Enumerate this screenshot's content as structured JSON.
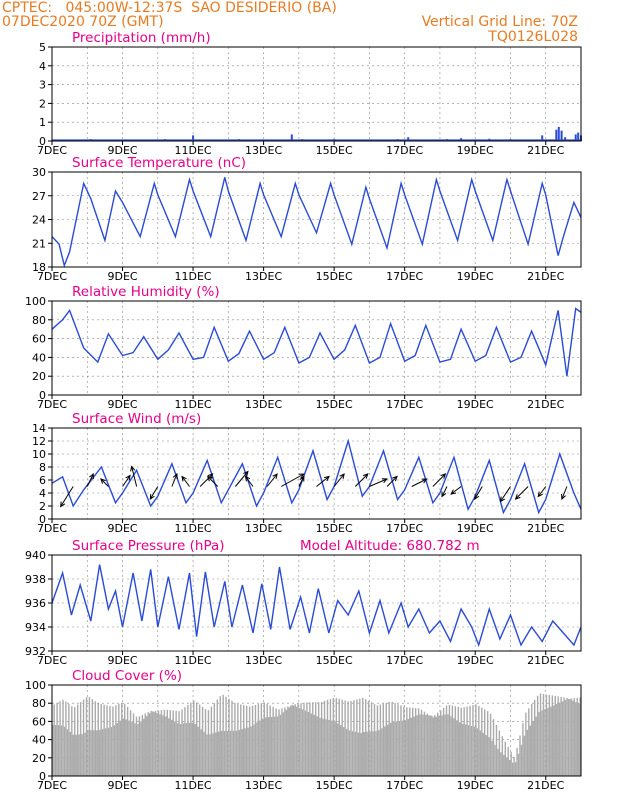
{
  "header": {
    "line1": "CPTEC:   045:00W-12:37S  SAO DESIDERIO (BA)",
    "line2": "07DEC2020 70Z (GMT)",
    "grid_note": "Vertical Grid Line: 70Z",
    "code": "TQ0126L028"
  },
  "colors": {
    "header": "#e87b22",
    "title": "#e8008a",
    "line": "#2a4bd7",
    "cloud": "#aaaaaa",
    "frame": "#000000",
    "grid": "#888888"
  },
  "date_ticks": [
    "7DEC",
    "9DEC",
    "11DEC",
    "13DEC",
    "15DEC",
    "17DEC",
    "19DEC",
    "21DEC"
  ],
  "chart_data": [
    {
      "id": "precip",
      "type": "bar",
      "title": "Precipitation (mm/h)",
      "ylim": [
        0,
        5
      ],
      "yticks": [
        "0",
        "1",
        "2",
        "3",
        "4",
        "5"
      ],
      "x_range_days": [
        7,
        22
      ],
      "values": [
        [
          8.1,
          0.1
        ],
        [
          8.6,
          0.05
        ],
        [
          10.2,
          0.1
        ],
        [
          11.0,
          0.3
        ],
        [
          12.3,
          0.1
        ],
        [
          13.8,
          0.35
        ],
        [
          14.1,
          0.1
        ],
        [
          15.0,
          0.1
        ],
        [
          15.9,
          0.08
        ],
        [
          16.8,
          0.1
        ],
        [
          17.1,
          0.2
        ],
        [
          18.2,
          0.1
        ],
        [
          18.6,
          0.15
        ],
        [
          19.4,
          0.12
        ],
        [
          20.0,
          0.1
        ],
        [
          20.9,
          0.3
        ],
        [
          21.3,
          0.6
        ],
        [
          21.37,
          0.75
        ],
        [
          21.45,
          0.55
        ],
        [
          21.55,
          0.2
        ],
        [
          21.85,
          0.35
        ],
        [
          21.92,
          0.45
        ],
        [
          22.0,
          0.3
        ]
      ],
      "grid": true
    },
    {
      "id": "temp",
      "type": "line",
      "title": "Surface Temperature (nC)",
      "ylim": [
        18,
        30.5
      ],
      "yticks": [
        "18",
        "21",
        "24",
        "27",
        "30"
      ],
      "amplitude_note": "",
      "series": [
        {
          "x": [
            7.0,
            7.2,
            7.35,
            7.5,
            7.9,
            8.1,
            8.5,
            8.8,
            9.0,
            9.5,
            9.9,
            10.0,
            10.5,
            10.9,
            11.0,
            11.5,
            11.9,
            12.0,
            12.5,
            12.9,
            13.0,
            13.5,
            13.9,
            14.0,
            14.5,
            14.9,
            15.0,
            15.5,
            15.9,
            16.0,
            16.5,
            16.9,
            17.0,
            17.5,
            17.9,
            18.0,
            18.5,
            18.9,
            19.0,
            19.5,
            19.9,
            20.0,
            20.5,
            20.9,
            21.0,
            21.35,
            21.5,
            21.8,
            22.0
          ],
          "y": [
            22.0,
            21.0,
            18.2,
            20.0,
            29.0,
            27.0,
            21.5,
            28.0,
            26.5,
            22.0,
            29.0,
            27.5,
            22.0,
            29.5,
            28.0,
            22.0,
            29.8,
            28.0,
            21.5,
            29.0,
            27.5,
            22.0,
            29.0,
            27.5,
            22.5,
            29.0,
            27.5,
            21.0,
            28.5,
            27.0,
            20.5,
            29.0,
            27.5,
            21.0,
            29.5,
            28.0,
            21.5,
            29.5,
            28.0,
            21.5,
            29.5,
            28.0,
            21.0,
            29.0,
            27.5,
            19.5,
            22.0,
            26.5,
            24.5
          ]
        }
      ],
      "grid": true
    },
    {
      "id": "rh",
      "type": "line",
      "title": "Relative Humidity (%)",
      "ylim": [
        0,
        100
      ],
      "yticks": [
        "0",
        "20",
        "40",
        "60",
        "80",
        "100"
      ],
      "series": [
        {
          "x": [
            7.0,
            7.3,
            7.5,
            7.9,
            8.3,
            8.6,
            9.0,
            9.3,
            9.6,
            10.0,
            10.3,
            10.6,
            11.0,
            11.3,
            11.6,
            12.0,
            12.3,
            12.6,
            13.0,
            13.3,
            13.6,
            14.0,
            14.3,
            14.6,
            15.0,
            15.3,
            15.6,
            16.0,
            16.3,
            16.6,
            17.0,
            17.3,
            17.6,
            18.0,
            18.3,
            18.6,
            19.0,
            19.3,
            19.6,
            20.0,
            20.3,
            20.6,
            21.0,
            21.35,
            21.6,
            21.85,
            22.0
          ],
          "y": [
            70,
            80,
            90,
            50,
            35,
            65,
            42,
            45,
            62,
            38,
            48,
            66,
            38,
            40,
            72,
            36,
            44,
            68,
            38,
            45,
            72,
            34,
            40,
            66,
            38,
            48,
            74,
            34,
            40,
            76,
            36,
            42,
            74,
            35,
            38,
            70,
            36,
            42,
            72,
            35,
            40,
            68,
            32,
            90,
            20,
            92,
            88
          ]
        }
      ],
      "grid": true
    },
    {
      "id": "wind",
      "type": "line",
      "title": "Surface Wind (m/s)",
      "ylim": [
        0,
        14
      ],
      "yticks": [
        "0",
        "2",
        "4",
        "6",
        "8",
        "10",
        "12",
        "14"
      ],
      "series": [
        {
          "x": [
            7.0,
            7.3,
            7.6,
            7.9,
            8.4,
            8.8,
            9.0,
            9.4,
            9.8,
            10.0,
            10.4,
            10.8,
            11.0,
            11.4,
            11.8,
            12.0,
            12.4,
            12.8,
            13.0,
            13.4,
            13.8,
            14.0,
            14.4,
            14.8,
            15.0,
            15.4,
            15.8,
            16.0,
            16.4,
            16.8,
            17.0,
            17.4,
            17.8,
            18.0,
            18.4,
            18.8,
            19.0,
            19.4,
            19.8,
            20.0,
            20.4,
            20.8,
            21.0,
            21.4,
            21.8,
            22.0
          ],
          "y": [
            5.5,
            6.5,
            2.0,
            4.5,
            8.0,
            2.5,
            4.0,
            7.5,
            2.0,
            3.5,
            8.5,
            2.5,
            4.0,
            9.0,
            2.5,
            4.5,
            8.5,
            2.0,
            4.0,
            9.5,
            2.5,
            4.5,
            10.5,
            3.0,
            5.0,
            12.0,
            3.5,
            5.0,
            10.5,
            3.0,
            4.5,
            9.5,
            2.5,
            4.0,
            9.5,
            1.5,
            3.5,
            9.0,
            1.0,
            3.0,
            8.5,
            1.0,
            3.0,
            10.0,
            4.0,
            1.5
          ]
        }
      ],
      "grid": true,
      "wind_arrows": [
        {
          "day": 7.6,
          "u": -2.5,
          "v": -4.0
        },
        {
          "day": 8.0,
          "u": 1.2,
          "v": 2.5
        },
        {
          "day": 8.6,
          "u": -1.5,
          "v": 1.5
        },
        {
          "day": 9.0,
          "u": 1.5,
          "v": 2.2
        },
        {
          "day": 9.4,
          "u": -1.0,
          "v": 4.0
        },
        {
          "day": 10.0,
          "u": -1.5,
          "v": -2.5
        },
        {
          "day": 10.4,
          "u": 1.0,
          "v": 2.5
        },
        {
          "day": 10.9,
          "u": -1.5,
          "v": 2.0
        },
        {
          "day": 11.2,
          "u": 2.5,
          "v": 2.5
        },
        {
          "day": 11.7,
          "u": -2.0,
          "v": 2.0
        },
        {
          "day": 12.2,
          "u": 2.5,
          "v": 3.0
        },
        {
          "day": 12.7,
          "u": -1.5,
          "v": 2.0
        },
        {
          "day": 13.1,
          "u": 2.0,
          "v": 2.5
        },
        {
          "day": 13.5,
          "u": 4.5,
          "v": 2.5
        },
        {
          "day": 14.0,
          "u": 1.0,
          "v": 2.0
        },
        {
          "day": 14.5,
          "u": 2.5,
          "v": 2.0
        },
        {
          "day": 15.0,
          "u": 2.0,
          "v": 2.5
        },
        {
          "day": 15.6,
          "u": 2.5,
          "v": 2.5
        },
        {
          "day": 16.0,
          "u": 3.5,
          "v": 1.5
        },
        {
          "day": 16.5,
          "u": 2.0,
          "v": 2.0
        },
        {
          "day": 17.2,
          "u": 3.0,
          "v": 1.5
        },
        {
          "day": 17.8,
          "u": 2.5,
          "v": 2.5
        },
        {
          "day": 18.2,
          "u": -1.0,
          "v": -2.0
        },
        {
          "day": 18.6,
          "u": -2.0,
          "v": -1.5
        },
        {
          "day": 19.2,
          "u": -1.5,
          "v": -2.5
        },
        {
          "day": 20.0,
          "u": -2.0,
          "v": -3.0
        },
        {
          "day": 20.5,
          "u": -2.5,
          "v": -2.5
        },
        {
          "day": 21.0,
          "u": -1.5,
          "v": -2.0
        },
        {
          "day": 21.6,
          "u": -1.0,
          "v": -2.5
        }
      ]
    },
    {
      "id": "press",
      "type": "line",
      "title": "Surface Pressure (hPa)",
      "extra_label": "Model Altitude: 680.782 m",
      "ylim": [
        932,
        940
      ],
      "yticks": [
        "932",
        "934",
        "936",
        "938",
        "940"
      ],
      "series": [
        {
          "x": [
            7.0,
            7.3,
            7.55,
            7.8,
            8.1,
            8.35,
            8.6,
            8.8,
            9.0,
            9.3,
            9.55,
            9.8,
            10.0,
            10.3,
            10.6,
            10.9,
            11.1,
            11.35,
            11.6,
            11.9,
            12.1,
            12.4,
            12.7,
            12.95,
            13.2,
            13.45,
            13.75,
            14.05,
            14.3,
            14.55,
            14.85,
            15.1,
            15.4,
            15.7,
            16.0,
            16.3,
            16.55,
            16.9,
            17.1,
            17.4,
            17.7,
            18.0,
            18.3,
            18.6,
            18.9,
            19.1,
            19.4,
            19.7,
            20.0,
            20.3,
            20.6,
            20.9,
            21.2,
            21.5,
            21.8,
            22.0
          ],
          "y": [
            936,
            938.5,
            935,
            937.5,
            934.5,
            939.2,
            935.5,
            937.0,
            934.0,
            938.5,
            934.5,
            938.8,
            934.0,
            938.2,
            933.8,
            938.5,
            933.2,
            938.6,
            934.0,
            937.8,
            934.0,
            937.5,
            933.5,
            937.6,
            933.8,
            939.0,
            933.8,
            936.5,
            933.5,
            937.2,
            933.5,
            936.2,
            935.0,
            937.0,
            933.5,
            936.2,
            933.5,
            936.0,
            934.0,
            935.5,
            933.5,
            934.5,
            932.8,
            935.5,
            934.0,
            932.5,
            935.5,
            933.0,
            935.0,
            932.5,
            934.0,
            932.8,
            934.5,
            933.5,
            932.5,
            934.0
          ]
        }
      ],
      "grid": true
    },
    {
      "id": "cloud",
      "type": "bar",
      "title": "Cloud Cover (%)",
      "ylim": [
        0,
        100
      ],
      "yticks": [
        "0",
        "20",
        "40",
        "60",
        "80",
        "100"
      ],
      "series": [
        {
          "x": [
            7.0,
            7.3,
            7.6,
            8.0,
            8.3,
            8.7,
            9.0,
            9.4,
            9.8,
            10.2,
            10.6,
            11.0,
            11.4,
            11.8,
            12.2,
            12.6,
            13.0,
            13.4,
            13.8,
            14.2,
            14.6,
            15.0,
            15.4,
            15.8,
            16.2,
            16.6,
            17.0,
            17.4,
            17.8,
            18.2,
            18.6,
            19.0,
            19.4,
            19.8,
            20.1,
            20.4,
            20.8,
            21.2,
            21.6,
            22.0
          ],
          "y": [
            80,
            85,
            75,
            88,
            80,
            78,
            85,
            70,
            82,
            80,
            75,
            85,
            72,
            90,
            80,
            78,
            85,
            80,
            90,
            88,
            85,
            88,
            82,
            86,
            78,
            84,
            80,
            82,
            75,
            85,
            78,
            80,
            70,
            40,
            20,
            70,
            95,
            96,
            98,
            95
          ]
        }
      ],
      "grid": true
    }
  ]
}
